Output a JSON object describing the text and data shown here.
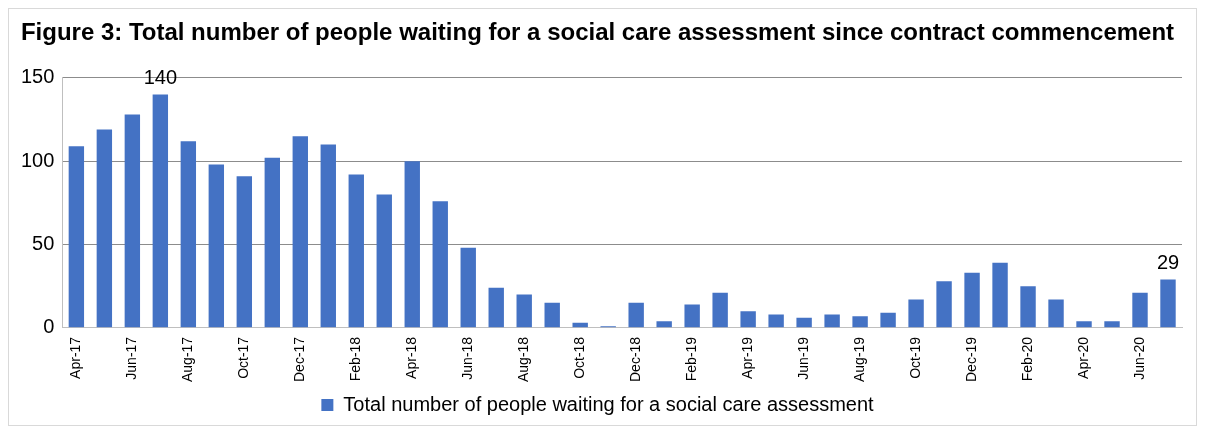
{
  "chart_data": {
    "type": "bar",
    "title": "Figure 3: Total number of people waiting for a social care assessment since contract commencement",
    "categories": [
      "Apr-17",
      null,
      "Jun-17",
      null,
      "Aug-17",
      null,
      "Oct-17",
      null,
      "Dec-17",
      null,
      "Feb-18",
      null,
      "Apr-18",
      null,
      "Jun-18",
      null,
      "Aug-18",
      null,
      "Oct-18",
      null,
      "Dec-18",
      null,
      "Feb-19",
      null,
      "Apr-19",
      null,
      "Jun-19",
      null,
      "Aug-19",
      null,
      "Oct-19",
      null,
      "Dec-19",
      null,
      "Feb-20",
      null,
      "Apr-20",
      null,
      "Jun-20",
      null
    ],
    "series": [
      {
        "name": "Total number of people waiting for a social care assessment",
        "color": "#4472c4",
        "values": [
          109,
          119,
          128,
          140,
          112,
          98,
          91,
          102,
          115,
          110,
          92,
          80,
          100,
          76,
          48,
          24,
          20,
          15,
          3,
          1,
          15,
          4,
          14,
          21,
          10,
          8,
          6,
          8,
          7,
          9,
          17,
          28,
          33,
          39,
          25,
          17,
          4,
          4,
          21,
          29
        ],
        "value_labels": [
          null,
          null,
          null,
          "140",
          null,
          null,
          null,
          null,
          null,
          null,
          null,
          null,
          null,
          null,
          null,
          null,
          null,
          null,
          null,
          null,
          null,
          null,
          null,
          null,
          null,
          null,
          null,
          null,
          null,
          null,
          null,
          null,
          null,
          null,
          null,
          null,
          null,
          null,
          null,
          "29"
        ]
      }
    ],
    "ylim": [
      0,
      150
    ],
    "yticks": [
      0,
      50,
      100,
      150
    ],
    "grid": "y",
    "legend": "bottom"
  }
}
